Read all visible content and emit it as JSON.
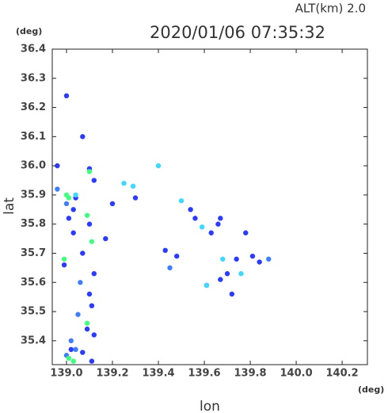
{
  "chart_data": {
    "type": "scatter",
    "title": "2020/01/06 07:35:32",
    "subtitle": "ALT(km) 2.0",
    "x_label": "lon",
    "y_label": "lat",
    "x_unit": "(deg)",
    "y_unit": "(deg)",
    "xlim": [
      138.938,
      140.31
    ],
    "ylim": [
      35.318,
      36.4
    ],
    "xticks": [
      {
        "value": 139,
        "label": "139.0"
      },
      139.2,
      139.4,
      139.6,
      139.8,
      {
        "value": 140,
        "label": "140.0"
      },
      140.2
    ],
    "yticks": [
      35.4,
      35.5,
      35.6,
      35.7,
      35.8,
      35.9,
      {
        "value": 36,
        "label": "36.0"
      },
      36.1,
      36.2,
      36.3,
      36.4
    ],
    "series": [
      {
        "color": "#2b3bff",
        "x": [
          139.0,
          139.07,
          138.96,
          139.1,
          139.12,
          139.04,
          139.2,
          139.3,
          139.03,
          139.01,
          139.1,
          139.03,
          139.17,
          139.48,
          139.43,
          139.63,
          139.67,
          139.66,
          139.78,
          139.81,
          139.84,
          139.74,
          138.99,
          139.07,
          139.12,
          139.1,
          139.11,
          139.09,
          139.12,
          139.07,
          139.02,
          139.11,
          139.72,
          139.7,
          139.54,
          139.56,
          139.61,
          139.67
        ],
        "values": [
          36.24,
          36.1,
          36.0,
          35.99,
          35.95,
          35.89,
          35.87,
          35.89,
          35.85,
          35.82,
          35.8,
          35.77,
          35.75,
          35.69,
          35.71,
          35.77,
          35.82,
          35.8,
          35.77,
          35.69,
          35.67,
          35.68,
          35.66,
          35.7,
          35.63,
          35.56,
          35.52,
          35.44,
          35.42,
          35.36,
          35.37,
          35.33,
          35.56,
          35.63,
          35.85,
          35.82,
          35.59,
          35.61
        ]
      },
      {
        "color": "#3f7fff",
        "x": [
          138.96,
          139.0,
          139.02,
          139.04,
          139.0,
          139.88,
          139.45,
          139.06,
          139.05
        ],
        "values": [
          35.92,
          35.87,
          35.4,
          35.37,
          35.35,
          35.68,
          35.65,
          35.6,
          35.49
        ]
      },
      {
        "color": "#3fd8ff",
        "x": [
          139.25,
          139.04,
          139.29,
          139.4,
          139.59,
          139.68,
          139.76,
          139.61,
          139.5
        ],
        "values": [
          35.94,
          35.9,
          35.93,
          36.0,
          35.79,
          35.68,
          35.63,
          35.59,
          35.88
        ]
      },
      {
        "color": "#40ff80",
        "x": [
          139.0,
          139.01,
          139.1,
          139.11,
          139.01,
          139.03,
          139.09,
          138.99,
          139.09
        ],
        "values": [
          35.9,
          35.89,
          35.98,
          35.74,
          35.34,
          35.33,
          35.46,
          35.68,
          35.83
        ]
      }
    ]
  }
}
